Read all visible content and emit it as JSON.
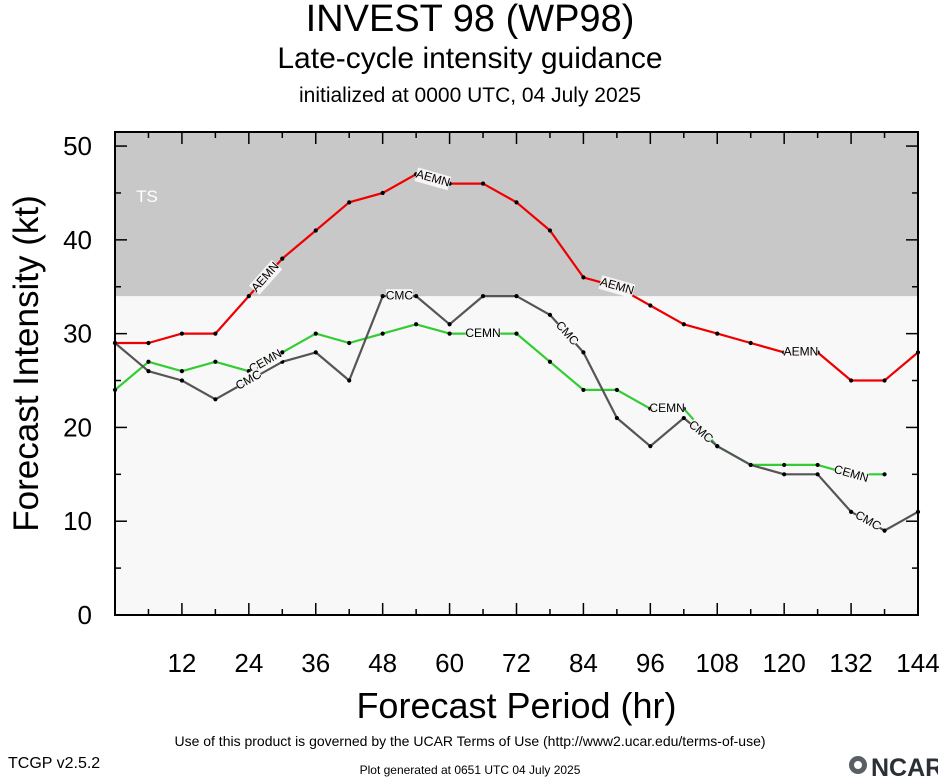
{
  "header": {
    "title": "INVEST 98 (WP98)",
    "subtitle": "Late-cycle intensity guidance",
    "init_line": "initialized at 0000 UTC, 04 July 2025"
  },
  "footer": {
    "terms": "Use of this product is governed by the UCAR Terms of Use (http://www2.ucar.edu/terms-of-use)",
    "version": "TCGP v2.5.2",
    "generated": "Plot generated at 0651 UTC   04 July 2025",
    "logo_text": "NCAR"
  },
  "chart_data": {
    "type": "line",
    "title": "INVEST 98 (WP98)",
    "xlabel": "Forecast Period (hr)",
    "ylabel": "Forecast Intensity (kt)",
    "xlim": [
      0,
      144
    ],
    "ylim": [
      0,
      51.5
    ],
    "xticks": [
      12,
      24,
      36,
      48,
      60,
      72,
      84,
      96,
      108,
      120,
      132,
      144
    ],
    "yticks": [
      0,
      10,
      20,
      30,
      40,
      50
    ],
    "bands": [
      {
        "label": "TS",
        "from": 34,
        "to": 51.5,
        "color": "#c8c8c8"
      }
    ],
    "background_color": "#f8f8f8",
    "grid": false,
    "series": [
      {
        "name": "AEMN",
        "color": "#ee0000",
        "x": [
          0,
          6,
          12,
          18,
          24,
          30,
          36,
          42,
          48,
          54,
          60,
          66,
          72,
          78,
          84,
          90,
          96,
          102,
          108,
          114,
          120,
          126,
          132,
          138,
          144
        ],
        "y": [
          29,
          29,
          30,
          30,
          34,
          38,
          41,
          44,
          45,
          47,
          46,
          46,
          44,
          41,
          36,
          35,
          33,
          31,
          30,
          29,
          28,
          28,
          25,
          25,
          28
        ],
        "label_x": [
          27,
          57,
          90,
          123
        ]
      },
      {
        "name": "CEMN",
        "color": "#33cc33",
        "x": [
          0,
          6,
          12,
          18,
          24,
          30,
          36,
          42,
          48,
          54,
          60,
          66,
          72,
          78,
          84,
          90,
          96,
          102,
          108,
          114,
          120,
          126,
          132,
          138
        ],
        "y": [
          24,
          27,
          26,
          27,
          26,
          28,
          30,
          29,
          30,
          31,
          30,
          30,
          30,
          27,
          24,
          24,
          22,
          22,
          18,
          16,
          16,
          16,
          15,
          15
        ],
        "label_x": [
          27,
          66,
          99,
          132
        ]
      },
      {
        "name": "CMC",
        "color": "#555555",
        "x": [
          0,
          6,
          12,
          18,
          24,
          30,
          36,
          42,
          48,
          54,
          60,
          66,
          72,
          78,
          84,
          90,
          96,
          102,
          108,
          114,
          120,
          126,
          132,
          138,
          144
        ],
        "y": [
          29,
          26,
          25,
          23,
          25,
          27,
          28,
          25,
          34,
          34,
          31,
          34,
          34,
          32,
          28,
          21,
          18,
          21,
          18,
          16,
          15,
          15,
          11,
          9,
          11
        ],
        "label_x": [
          24,
          51,
          81,
          105,
          135
        ]
      }
    ]
  }
}
